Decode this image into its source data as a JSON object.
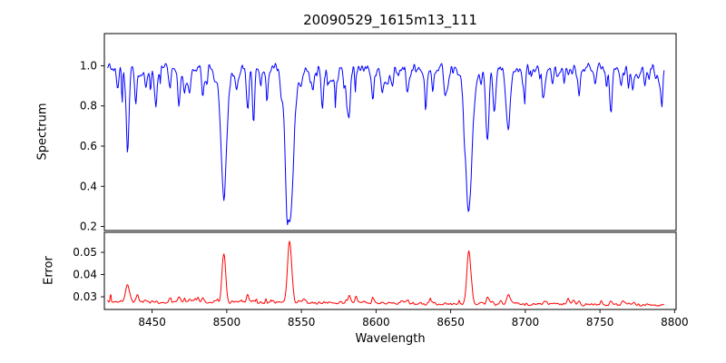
{
  "chart_data": {
    "type": "line",
    "title": "20090529_1615m13_111",
    "xlabel": "Wavelength",
    "background": "#ffffff",
    "axis_color": "#000000",
    "grid": false,
    "legend": "none",
    "x_range": [
      8420,
      8793
    ],
    "xlim": [
      8418,
      8801
    ],
    "xticks": [
      8450,
      8500,
      8550,
      8600,
      8650,
      8700,
      8750,
      8800
    ],
    "xtick_labels": [
      "8450",
      "8500",
      "8550",
      "8600",
      "8650",
      "8700",
      "8750",
      "8800"
    ],
    "panels": [
      {
        "name": "spectrum",
        "ylabel": "Spectrum",
        "color": "#0000ff",
        "ylim": [
          0.18,
          1.16
        ],
        "yticks": [
          0.2,
          0.4,
          0.6,
          0.8,
          1.0
        ],
        "ytick_labels": [
          "0.2",
          "0.4",
          "0.6",
          "0.8",
          "1.0"
        ],
        "continuum": 0.99,
        "noise_amplitude": 0.032,
        "absorption_lines": [
          {
            "wavelength": 8427.0,
            "depth": 0.1,
            "width": 0.8
          },
          {
            "wavelength": 8433.5,
            "depth": 0.4,
            "width": 1.0
          },
          {
            "wavelength": 8439.0,
            "depth": 0.18,
            "width": 0.8
          },
          {
            "wavelength": 8446.0,
            "depth": 0.1,
            "width": 0.8
          },
          {
            "wavelength": 8452.0,
            "depth": 0.12,
            "width": 0.8
          },
          {
            "wavelength": 8462.0,
            "depth": 0.1,
            "width": 0.8
          },
          {
            "wavelength": 8468.0,
            "depth": 0.18,
            "width": 0.9
          },
          {
            "wavelength": 8475.0,
            "depth": 0.1,
            "width": 0.8
          },
          {
            "wavelength": 8484.0,
            "depth": 0.12,
            "width": 0.8
          },
          {
            "wavelength": 8498.0,
            "depth": 0.62,
            "width": 2.0
          },
          {
            "wavelength": 8507.0,
            "depth": 0.08,
            "width": 0.8
          },
          {
            "wavelength": 8514.0,
            "depth": 0.2,
            "width": 0.9
          },
          {
            "wavelength": 8518.0,
            "depth": 0.14,
            "width": 0.8
          },
          {
            "wavelength": 8527.0,
            "depth": 0.1,
            "width": 0.8
          },
          {
            "wavelength": 8542.1,
            "depth": 0.75,
            "width": 2.6
          },
          {
            "wavelength": 8556.0,
            "depth": 0.08,
            "width": 0.8
          },
          {
            "wavelength": 8582.0,
            "depth": 0.12,
            "width": 0.8
          },
          {
            "wavelength": 8598.0,
            "depth": 0.14,
            "width": 0.8
          },
          {
            "wavelength": 8611.0,
            "depth": 0.1,
            "width": 0.8
          },
          {
            "wavelength": 8621.0,
            "depth": 0.13,
            "width": 0.8
          },
          {
            "wavelength": 8634.0,
            "depth": 0.08,
            "width": 0.8
          },
          {
            "wavelength": 8648.0,
            "depth": 0.1,
            "width": 0.8
          },
          {
            "wavelength": 8662.1,
            "depth": 0.7,
            "width": 2.3
          },
          {
            "wavelength": 8675.0,
            "depth": 0.22,
            "width": 0.9
          },
          {
            "wavelength": 8679.0,
            "depth": 0.12,
            "width": 0.8
          },
          {
            "wavelength": 8688.6,
            "depth": 0.3,
            "width": 1.3
          },
          {
            "wavelength": 8699.0,
            "depth": 0.08,
            "width": 0.8
          },
          {
            "wavelength": 8712.0,
            "depth": 0.1,
            "width": 0.8
          },
          {
            "wavelength": 8718.0,
            "depth": 0.08,
            "width": 0.8
          },
          {
            "wavelength": 8736.0,
            "depth": 0.12,
            "width": 0.8
          },
          {
            "wavelength": 8747.0,
            "depth": 0.08,
            "width": 0.8
          },
          {
            "wavelength": 8757.0,
            "depth": 0.1,
            "width": 0.8
          },
          {
            "wavelength": 8764.0,
            "depth": 0.08,
            "width": 0.8
          },
          {
            "wavelength": 8772.0,
            "depth": 0.12,
            "width": 0.8
          },
          {
            "wavelength": 8780.0,
            "depth": 0.08,
            "width": 0.8
          }
        ]
      },
      {
        "name": "error",
        "ylabel": "Error",
        "color": "#ff0000",
        "ylim": [
          0.0243,
          0.059
        ],
        "yticks": [
          0.03,
          0.04,
          0.05
        ],
        "ytick_labels": [
          "0.03",
          "0.04",
          "0.05"
        ],
        "baseline_start": 0.0278,
        "baseline_end": 0.0263,
        "noise_amplitude": 0.0008,
        "spikes": [
          {
            "wavelength": 8433.5,
            "height": 0.0075,
            "width": 1.4
          },
          {
            "wavelength": 8440.0,
            "height": 0.003,
            "width": 0.9
          },
          {
            "wavelength": 8468.0,
            "height": 0.0025,
            "width": 0.9
          },
          {
            "wavelength": 8484.0,
            "height": 0.002,
            "width": 0.8
          },
          {
            "wavelength": 8498.0,
            "height": 0.022,
            "width": 1.2
          },
          {
            "wavelength": 8514.0,
            "height": 0.003,
            "width": 0.9
          },
          {
            "wavelength": 8542.1,
            "height": 0.028,
            "width": 1.4
          },
          {
            "wavelength": 8582.0,
            "height": 0.0015,
            "width": 0.8
          },
          {
            "wavelength": 8598.0,
            "height": 0.002,
            "width": 0.8
          },
          {
            "wavelength": 8621.0,
            "height": 0.002,
            "width": 0.8
          },
          {
            "wavelength": 8662.1,
            "height": 0.024,
            "width": 1.3
          },
          {
            "wavelength": 8675.0,
            "height": 0.003,
            "width": 0.9
          },
          {
            "wavelength": 8688.6,
            "height": 0.0045,
            "width": 1.0
          },
          {
            "wavelength": 8736.0,
            "height": 0.0015,
            "width": 0.8
          },
          {
            "wavelength": 8757.0,
            "height": 0.0015,
            "width": 0.8
          }
        ]
      }
    ]
  }
}
